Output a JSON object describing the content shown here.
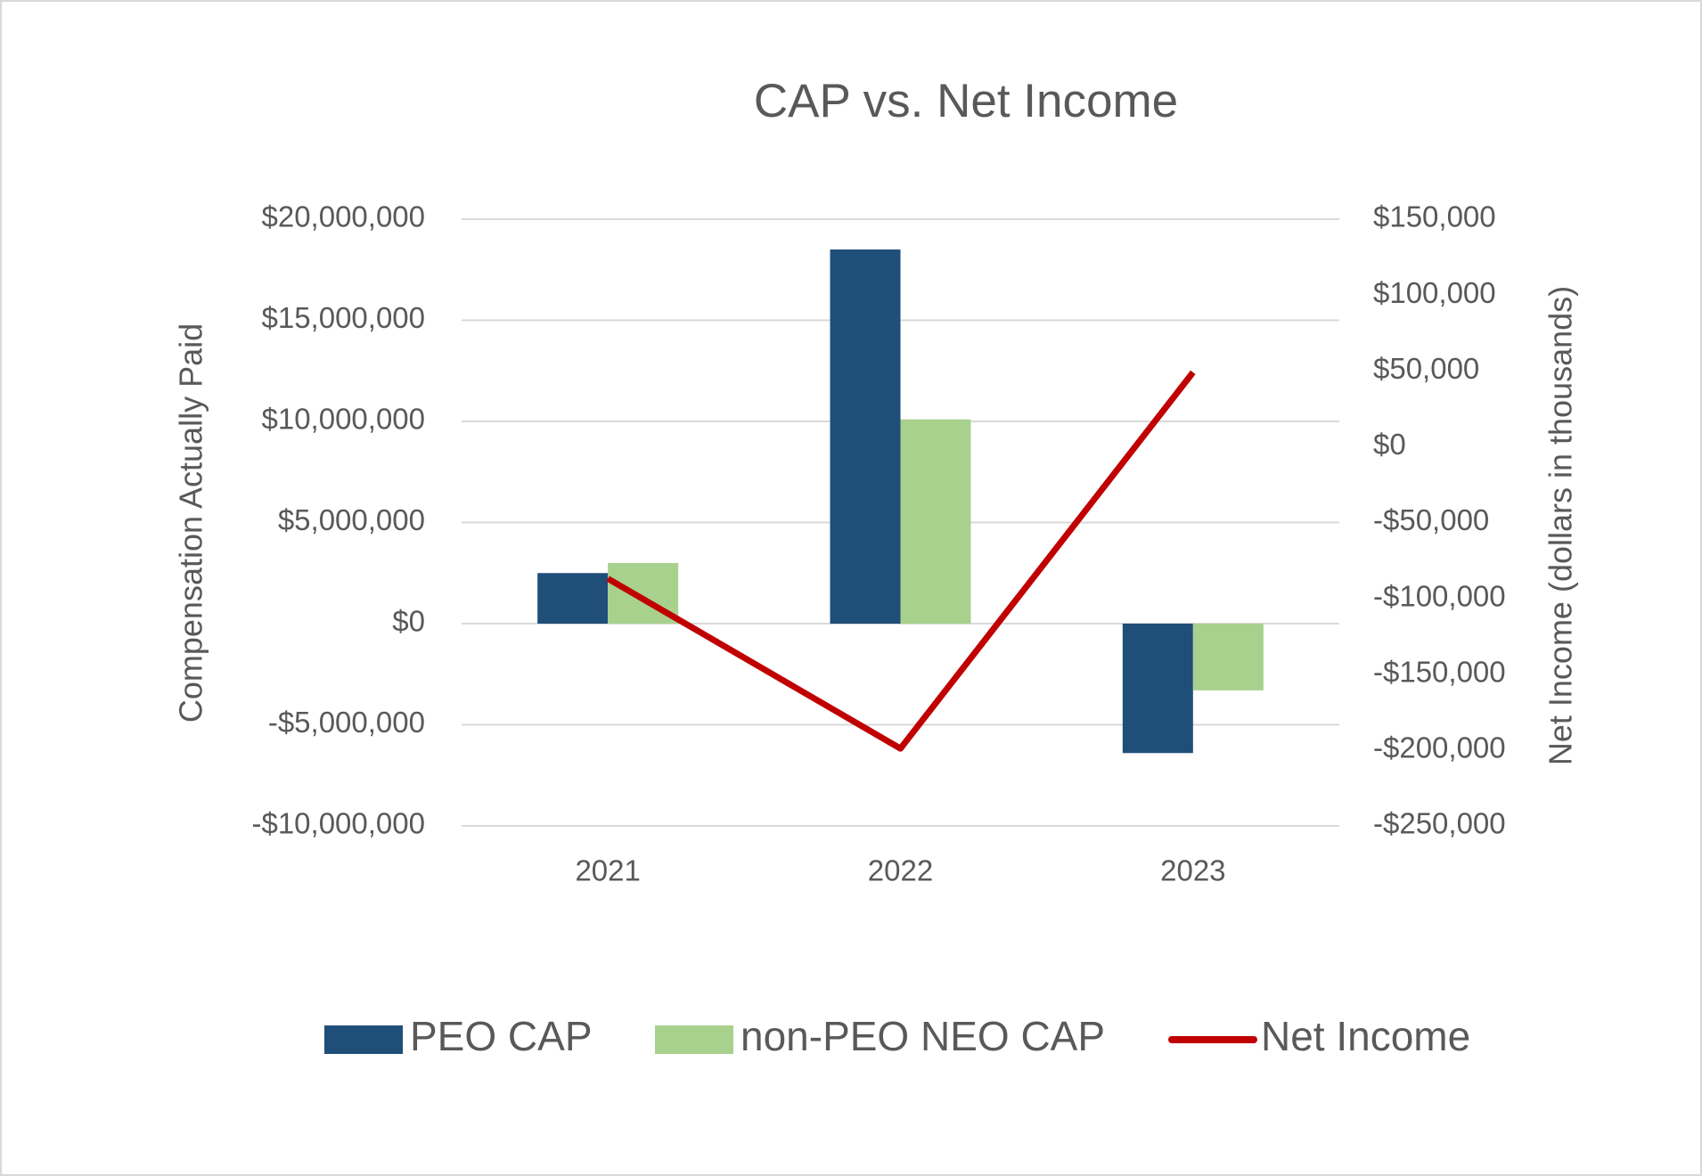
{
  "chart_data": {
    "type": "bar",
    "title": "CAP vs. Net Income",
    "categories": [
      "2021",
      "2022",
      "2023"
    ],
    "y_label": "Compensation Actually Paid",
    "y2_label": "Net Income (dollars in thousands)",
    "series": [
      {
        "name": "PEO CAP",
        "type": "bar",
        "color": "#1f4e79",
        "values": [
          2500000,
          18500000,
          -6400000
        ]
      },
      {
        "name": "non-PEO NEO CAP",
        "type": "bar",
        "color": "#a9d18e",
        "values": [
          3000000,
          10100000,
          -3300000
        ]
      },
      {
        "name": "Net Income",
        "type": "line",
        "axis": "y2",
        "color": "#c00000",
        "values": [
          -87000,
          -199000,
          49000
        ]
      }
    ],
    "ylim": [
      -10000000,
      20000000
    ],
    "yticks": [
      {
        "value": -10000000,
        "label": "-$10,000,000"
      },
      {
        "value": -5000000,
        "label": "-$5,000,000"
      },
      {
        "value": 0,
        "label": "$0"
      },
      {
        "value": 5000000,
        "label": "$5,000,000"
      },
      {
        "value": 10000000,
        "label": "$10,000,000"
      },
      {
        "value": 15000000,
        "label": "$15,000,000"
      },
      {
        "value": 20000000,
        "label": "$20,000,000"
      }
    ],
    "y2lim": [
      -250000,
      150000
    ],
    "y2ticks": [
      {
        "value": -250000,
        "label": "-$250,000"
      },
      {
        "value": -200000,
        "label": "-$200,000"
      },
      {
        "value": -150000,
        "label": "-$150,000"
      },
      {
        "value": -100000,
        "label": "-$100,000"
      },
      {
        "value": -50000,
        "label": "-$50,000"
      },
      {
        "value": 0,
        "label": "$0"
      },
      {
        "value": 50000,
        "label": "$50,000"
      },
      {
        "value": 100000,
        "label": "$100,000"
      },
      {
        "value": 150000,
        "label": "$150,000"
      }
    ],
    "grid": true,
    "legend": "bottom"
  }
}
